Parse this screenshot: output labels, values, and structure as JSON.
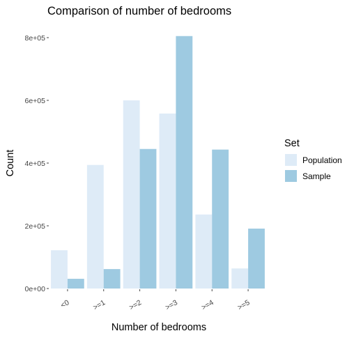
{
  "chart_data": {
    "type": "bar",
    "title": "Comparison of number of bedrooms",
    "xlabel": "Number of bedrooms",
    "ylabel": "Count",
    "categories": [
      "<0",
      ">=1",
      ">=2",
      ">=3",
      ">=4",
      ">=5"
    ],
    "series": [
      {
        "name": "Population",
        "color": "#deebf7",
        "values": [
          122000,
          394000,
          600000,
          558000,
          236000,
          64000
        ]
      },
      {
        "name": "Sample",
        "color": "#9ecae1",
        "values": [
          31000,
          62000,
          445000,
          805000,
          443000,
          191000
        ]
      }
    ],
    "ylim": [
      0,
      840000
    ],
    "yticks": [
      0,
      200000,
      400000,
      600000,
      800000
    ],
    "ytick_labels": [
      "0e+00",
      "2e+05",
      "4e+05",
      "6e+05",
      "8e+05"
    ],
    "legend": {
      "title": "Set",
      "position": "right"
    },
    "grid": false
  }
}
